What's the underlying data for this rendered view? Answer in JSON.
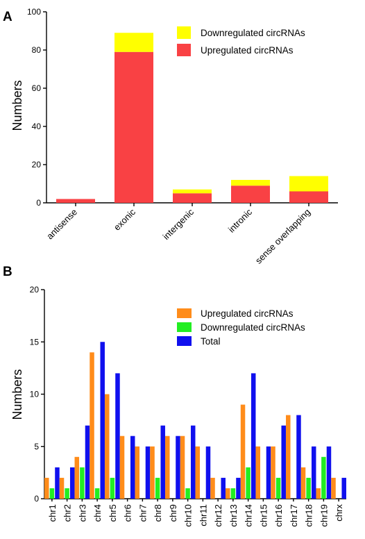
{
  "panels": [
    {
      "letter": "A",
      "ylabel": "Numbers"
    },
    {
      "letter": "B",
      "ylabel": "Numbers"
    }
  ],
  "chart_data": [
    {
      "type": "bar",
      "stacked": true,
      "categories": [
        "antisense",
        "exonic",
        "intergenic",
        "intronic",
        "sense overlapping"
      ],
      "series": [
        {
          "name": "Upregulated circRNAs",
          "color": "#f94144",
          "values": [
            2,
            79,
            5,
            9,
            6
          ]
        },
        {
          "name": "Downregulated circRNAs",
          "color": "#ffff00",
          "values": [
            0,
            10,
            2,
            3,
            8
          ]
        }
      ],
      "legend_order": [
        1,
        0
      ],
      "xlabel": "",
      "ylabel": "Numbers",
      "ylim": [
        0,
        100
      ],
      "yticks": [
        0,
        20,
        40,
        60,
        80,
        100
      ],
      "grid": false,
      "legend_position": "top-right"
    },
    {
      "type": "bar",
      "grouped": true,
      "categories": [
        "chr1",
        "chr2",
        "chr3",
        "chr4",
        "chr5",
        "chr6",
        "chr7",
        "chr8",
        "chr9",
        "chr10",
        "chr11",
        "chr12",
        "chr13",
        "chr14",
        "chr15",
        "chr16",
        "chr17",
        "chr18",
        "chr19",
        "chrx"
      ],
      "series": [
        {
          "name": "Upregulated circRNAs",
          "color": "#ff8c1a",
          "values": [
            2,
            2,
            4,
            14,
            10,
            6,
            5,
            5,
            6,
            6,
            5,
            2,
            1,
            9,
            5,
            5,
            8,
            3,
            1,
            2
          ]
        },
        {
          "name": "Downregulated circRNAs",
          "color": "#22ee22",
          "values": [
            1,
            1,
            3,
            1,
            2,
            0,
            0,
            2,
            0,
            1,
            0,
            0,
            1,
            3,
            0,
            2,
            0,
            2,
            4,
            0
          ]
        },
        {
          "name": "Total",
          "color": "#1010ee",
          "values": [
            3,
            3,
            7,
            15,
            12,
            6,
            5,
            7,
            6,
            7,
            5,
            2,
            2,
            12,
            5,
            7,
            8,
            5,
            5,
            2
          ]
        }
      ],
      "legend_order": [
        0,
        1,
        2
      ],
      "xlabel": "",
      "ylabel": "Numbers",
      "ylim": [
        0,
        20
      ],
      "yticks": [
        0,
        5,
        10,
        15,
        20
      ],
      "grid": false,
      "legend_position": "top-right"
    }
  ]
}
